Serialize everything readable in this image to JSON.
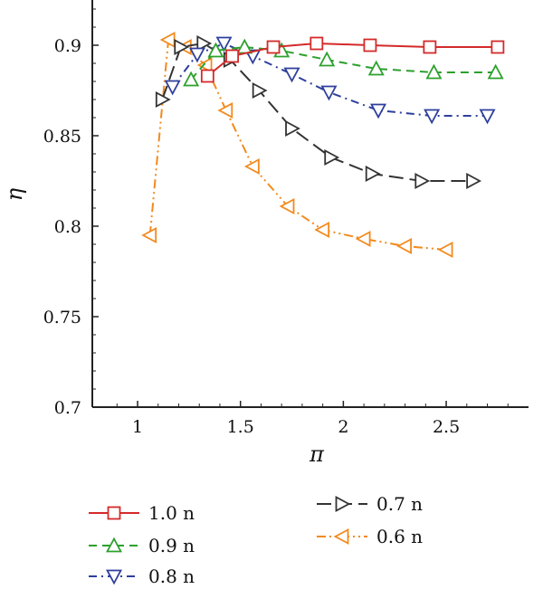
{
  "chart_data": {
    "type": "line",
    "xlabel": "π",
    "ylabel": "η",
    "xlim": [
      0.78,
      2.9
    ],
    "ylim": [
      0.7,
      0.925
    ],
    "xticks": [
      "1",
      "1.5",
      "2",
      "2.5"
    ],
    "xtick_values": [
      1,
      1.5,
      2,
      2.5
    ],
    "yticks": [
      "0.7",
      "0.75",
      "0.8",
      "0.85",
      "0.9"
    ],
    "ytick_values": [
      0.7,
      0.75,
      0.8,
      0.85,
      0.9
    ],
    "grid": false,
    "legend_position": "bottom",
    "series": [
      {
        "name": "1.0 n",
        "color": "#d42a2a",
        "marker": "square",
        "dash": "solid",
        "x": [
          1.34,
          1.46,
          1.66,
          1.87,
          2.13,
          2.42,
          2.75
        ],
        "y": [
          0.883,
          0.894,
          0.899,
          0.901,
          0.9,
          0.899,
          0.899
        ]
      },
      {
        "name": "0.9 n",
        "color": "#2ca02c",
        "marker": "triangle-up",
        "dash": "dash",
        "x": [
          1.26,
          1.38,
          1.52,
          1.7,
          1.92,
          2.16,
          2.44,
          2.74
        ],
        "y": [
          0.881,
          0.897,
          0.899,
          0.897,
          0.892,
          0.887,
          0.885,
          0.885
        ]
      },
      {
        "name": "0.8 n",
        "color": "#2e3f9c",
        "marker": "triangle-down",
        "dash": "dashdot",
        "x": [
          1.17,
          1.29,
          1.42,
          1.56,
          1.75,
          1.93,
          2.17,
          2.43,
          2.7
        ],
        "y": [
          0.877,
          0.895,
          0.901,
          0.894,
          0.884,
          0.874,
          0.864,
          0.861,
          0.861
        ]
      },
      {
        "name": "0.7 n",
        "color": "#333333",
        "marker": "triangle-right",
        "dash": "longdash",
        "x": [
          1.12,
          1.21,
          1.32,
          1.45,
          1.59,
          1.75,
          1.94,
          2.14,
          2.38,
          2.63
        ],
        "y": [
          0.87,
          0.899,
          0.901,
          0.892,
          0.875,
          0.854,
          0.838,
          0.829,
          0.825,
          0.825
        ]
      },
      {
        "name": "0.6 n",
        "color": "#f28a1e",
        "marker": "triangle-left",
        "dash": "dashdotdot",
        "x": [
          1.06,
          1.15,
          1.23,
          1.33,
          1.43,
          1.56,
          1.73,
          1.9,
          2.1,
          2.3,
          2.5
        ],
        "y": [
          0.795,
          0.903,
          0.899,
          0.889,
          0.864,
          0.833,
          0.811,
          0.798,
          0.793,
          0.789,
          0.787
        ]
      }
    ]
  }
}
